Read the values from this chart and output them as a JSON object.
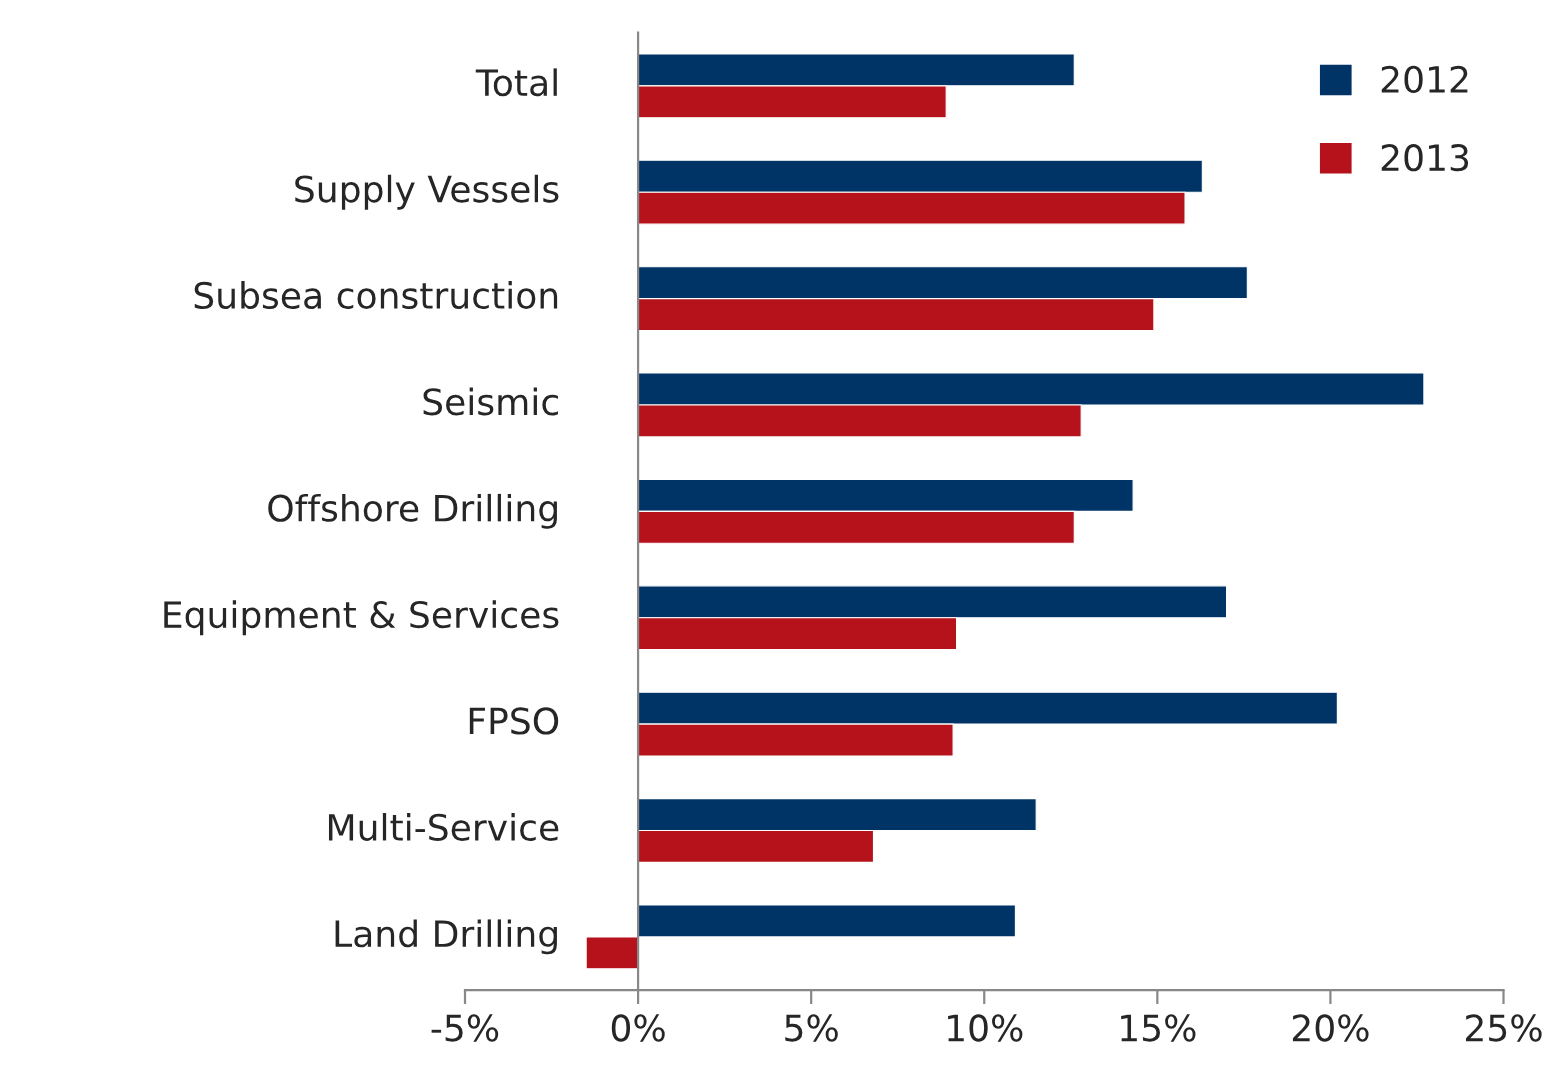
{
  "chart_data": {
    "type": "bar",
    "orientation": "horizontal",
    "categories": [
      "Total",
      "Supply Vessels",
      "Subsea construction",
      "Seismic",
      "Offshore Drilling",
      "Equipment & Services",
      "FPSO",
      "Multi-Service",
      "Land Drilling"
    ],
    "series": [
      {
        "name": "2012",
        "color": "#003366",
        "values": [
          12.6,
          16.3,
          17.6,
          22.7,
          14.3,
          17.0,
          20.2,
          11.5,
          10.9
        ]
      },
      {
        "name": "2013",
        "color": "#b5121b",
        "values": [
          8.9,
          15.8,
          14.9,
          12.8,
          12.6,
          9.2,
          9.1,
          6.8,
          -1.5
        ]
      }
    ],
    "xlim": [
      -5,
      25
    ],
    "xticks": [
      {
        "value": -5,
        "label": "-5%"
      },
      {
        "value": 0,
        "label": "0%"
      },
      {
        "value": 5,
        "label": "5%"
      },
      {
        "value": 10,
        "label": "10%"
      },
      {
        "value": 15,
        "label": "15%"
      },
      {
        "value": 20,
        "label": "20%"
      },
      {
        "value": 25,
        "label": "25%"
      }
    ],
    "grid": false,
    "legend": "top right"
  }
}
